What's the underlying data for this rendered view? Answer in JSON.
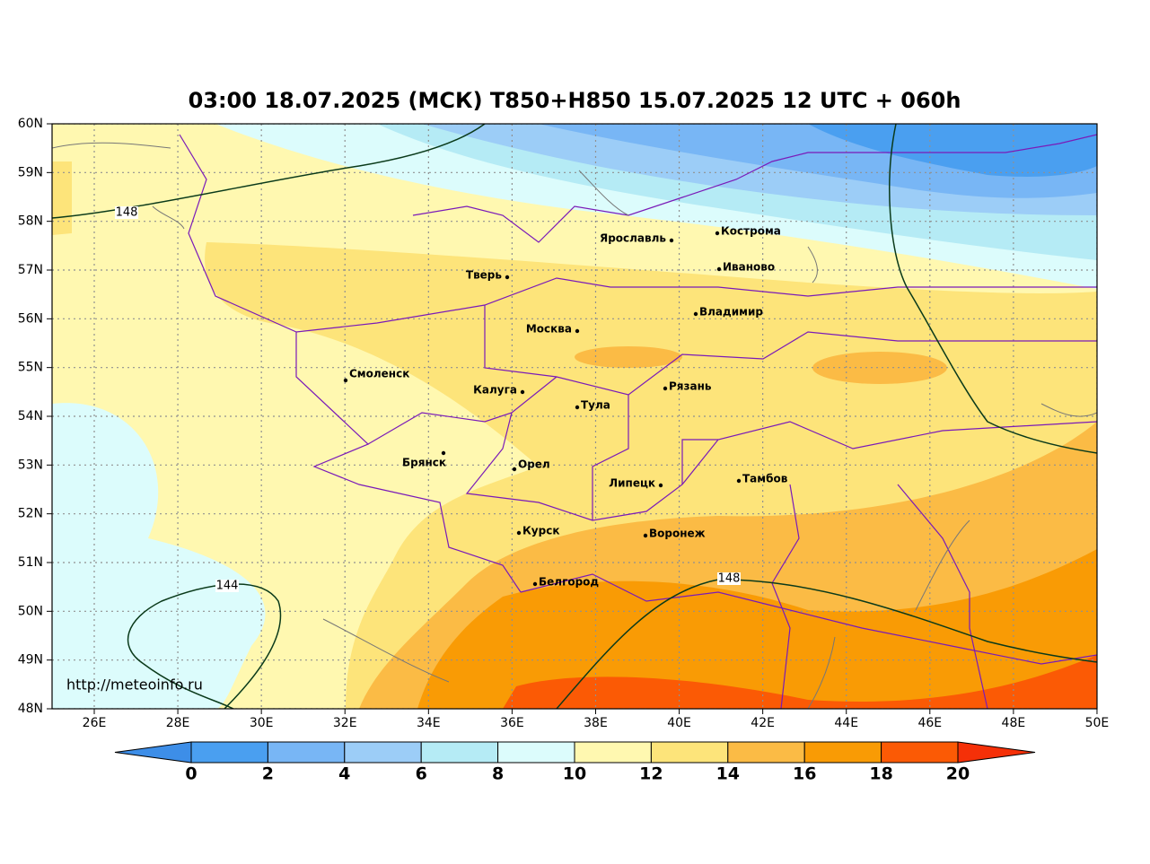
{
  "title": "03:00 18.07.2025 (МСК) T850+H850 15.07.2025 12 UTC + 060h",
  "lat_labels": [
    "60N",
    "59N",
    "58N",
    "57N",
    "56N",
    "55N",
    "54N",
    "53N",
    "52N",
    "51N",
    "50N",
    "49N",
    "48N"
  ],
  "lon_labels": [
    "26E",
    "28E",
    "30E",
    "32E",
    "34E",
    "36E",
    "38E",
    "40E",
    "42E",
    "44E",
    "46E",
    "48E",
    "50E"
  ],
  "cities": [
    "Кострома",
    "Ярославль",
    "Иваново",
    "Тверь",
    "Владимир",
    "Москва",
    "Смоленск",
    "Калуга",
    "Рязань",
    "Тула",
    "Брянск",
    "Орел",
    "Липецк",
    "Тамбов",
    "Курск",
    "Воронеж",
    "Белгород"
  ],
  "contour_labels": [
    "148",
    "148",
    "144"
  ],
  "source": "http://meteoinfo.ru",
  "colorbar": {
    "ticks": [
      0,
      2,
      4,
      6,
      8,
      10,
      12,
      14,
      16,
      18,
      20
    ],
    "colors": [
      "#4a9ff0",
      "#78b6f5",
      "#9ccdf7",
      "#b5ebf5",
      "#dcfcfc",
      "#fff8b0",
      "#fde47a",
      "#fbbb45",
      "#f99b05",
      "#fb5a05"
    ],
    "under": "#3d8ee8",
    "over": "#f53008"
  }
}
